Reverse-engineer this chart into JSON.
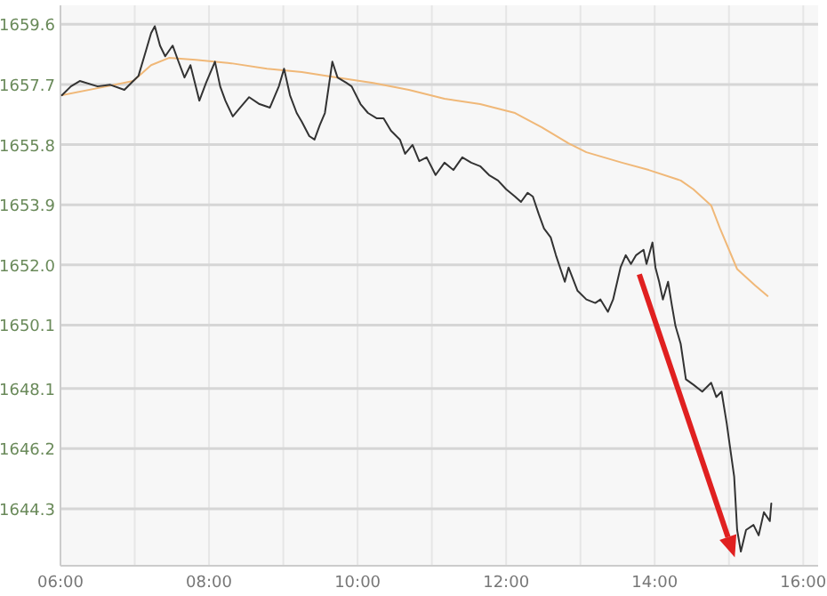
{
  "chart_data": {
    "type": "line",
    "xlim": [
      6,
      16.2
    ],
    "xticks": [
      {
        "value": 6,
        "label": "06:00"
      },
      {
        "value": 7,
        "label": null
      },
      {
        "value": 8,
        "label": "08:00"
      },
      {
        "value": 9,
        "label": null
      },
      {
        "value": 10,
        "label": "10:00"
      },
      {
        "value": 11,
        "label": null
      },
      {
        "value": 12,
        "label": "12:00"
      },
      {
        "value": 13,
        "label": null
      },
      {
        "value": 14,
        "label": "14:00"
      },
      {
        "value": 15,
        "label": null
      },
      {
        "value": 16,
        "label": "16:00"
      }
    ],
    "ylim": [
      1642.5,
      1660.2
    ],
    "yticks": [
      {
        "value": 1644.3,
        "label": "1644.3"
      },
      {
        "value": 1646.2,
        "label": "1646.2"
      },
      {
        "value": 1648.1,
        "label": "1648.1"
      },
      {
        "value": 1650.1,
        "label": "1650.1"
      },
      {
        "value": 1652.0,
        "label": "1652.0"
      },
      {
        "value": 1653.9,
        "label": "1653.9"
      },
      {
        "value": 1655.8,
        "label": "1655.8"
      },
      {
        "value": 1657.7,
        "label": "1657.7"
      },
      {
        "value": 1659.6,
        "label": "1659.6"
      }
    ],
    "grid": true,
    "marker": "none",
    "series": [
      {
        "color": "#f0b878",
        "x": [
          6.02,
          6.62,
          6.98,
          7.22,
          7.46,
          7.82,
          8.3,
          8.78,
          9.25,
          9.73,
          10.21,
          10.69,
          11.17,
          11.65,
          12.12,
          12.48,
          12.84,
          13.08,
          13.56,
          13.92,
          14.35,
          14.52,
          14.76,
          14.88,
          15.11,
          15.35,
          15.52
        ],
        "values": [
          1657.36,
          1657.64,
          1657.81,
          1658.31,
          1658.54,
          1658.48,
          1658.37,
          1658.2,
          1658.09,
          1657.92,
          1657.75,
          1657.53,
          1657.25,
          1657.08,
          1656.8,
          1656.35,
          1655.84,
          1655.56,
          1655.23,
          1655.0,
          1654.67,
          1654.39,
          1653.88,
          1653.15,
          1651.87,
          1651.36,
          1651.02
        ]
      },
      {
        "color": "#333333",
        "x": [
          6.02,
          6.14,
          6.26,
          6.5,
          6.67,
          6.86,
          6.98,
          7.05,
          7.15,
          7.22,
          7.27,
          7.34,
          7.41,
          7.51,
          7.58,
          7.67,
          7.75,
          7.87,
          7.96,
          8.08,
          8.15,
          8.22,
          8.32,
          8.42,
          8.54,
          8.68,
          8.82,
          8.94,
          9.01,
          9.09,
          9.18,
          9.25,
          9.35,
          9.42,
          9.49,
          9.56,
          9.66,
          9.73,
          9.85,
          9.92,
          10.04,
          10.14,
          10.26,
          10.35,
          10.45,
          10.57,
          10.64,
          10.74,
          10.83,
          10.93,
          11.05,
          11.17,
          11.29,
          11.41,
          11.53,
          11.65,
          11.77,
          11.89,
          12.0,
          12.12,
          12.2,
          12.29,
          12.36,
          12.44,
          12.51,
          12.6,
          12.67,
          12.75,
          12.79,
          12.84,
          12.96,
          13.08,
          13.2,
          13.27,
          13.37,
          13.44,
          13.54,
          13.61,
          13.68,
          13.75,
          13.85,
          13.89,
          13.97,
          14.01,
          14.06,
          14.11,
          14.18,
          14.23,
          14.28,
          14.35,
          14.42,
          14.52,
          14.64,
          14.76,
          14.83,
          14.9,
          14.97,
          15.02,
          15.07,
          15.11,
          15.16,
          15.23,
          15.33,
          15.4,
          15.47,
          15.55,
          15.57
        ],
        "values": [
          1657.36,
          1657.64,
          1657.81,
          1657.64,
          1657.69,
          1657.53,
          1657.81,
          1657.97,
          1658.76,
          1659.32,
          1659.54,
          1658.93,
          1658.59,
          1658.93,
          1658.48,
          1657.92,
          1658.31,
          1657.19,
          1657.75,
          1658.42,
          1657.64,
          1657.19,
          1656.69,
          1656.97,
          1657.3,
          1657.08,
          1656.97,
          1657.64,
          1658.2,
          1657.36,
          1656.8,
          1656.52,
          1656.07,
          1655.96,
          1656.41,
          1656.8,
          1658.42,
          1657.92,
          1657.75,
          1657.64,
          1657.08,
          1656.8,
          1656.63,
          1656.63,
          1656.24,
          1655.96,
          1655.51,
          1655.79,
          1655.28,
          1655.4,
          1654.84,
          1655.23,
          1655.0,
          1655.4,
          1655.23,
          1655.12,
          1654.84,
          1654.67,
          1654.39,
          1654.16,
          1653.99,
          1654.28,
          1654.16,
          1653.6,
          1653.15,
          1652.87,
          1652.31,
          1651.75,
          1651.47,
          1651.92,
          1651.19,
          1650.91,
          1650.8,
          1650.91,
          1650.52,
          1650.91,
          1651.92,
          1652.31,
          1652.03,
          1652.31,
          1652.48,
          1652.03,
          1652.71,
          1651.92,
          1651.47,
          1650.91,
          1651.47,
          1650.74,
          1650.07,
          1649.51,
          1648.39,
          1648.22,
          1648.0,
          1648.28,
          1647.83,
          1648.0,
          1646.99,
          1646.15,
          1645.31,
          1643.63,
          1642.95,
          1643.63,
          1643.79,
          1643.46,
          1644.19,
          1643.91,
          1644.47
        ]
      }
    ]
  }
}
